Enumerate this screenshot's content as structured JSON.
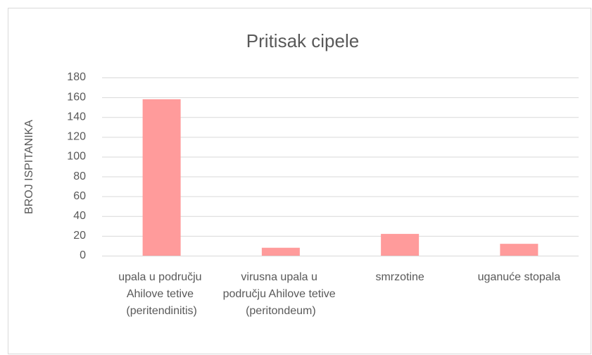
{
  "chart_data": {
    "type": "bar",
    "title": "Pritisak cipele",
    "y_label": "BROJ ISPITANIKA",
    "categories": [
      "upala u području Ahilove tetive (peritendinitis)",
      "virusna upala u području Ahilove tetive (peritondeum)",
      "smrzotine",
      "uganuće stopala"
    ],
    "values": [
      158,
      8,
      22,
      12
    ],
    "color": "#ff9b9b",
    "ylim": [
      0,
      180
    ],
    "yticks": [
      0,
      20,
      40,
      60,
      80,
      100,
      120,
      140,
      160,
      180
    ],
    "grid": true
  }
}
